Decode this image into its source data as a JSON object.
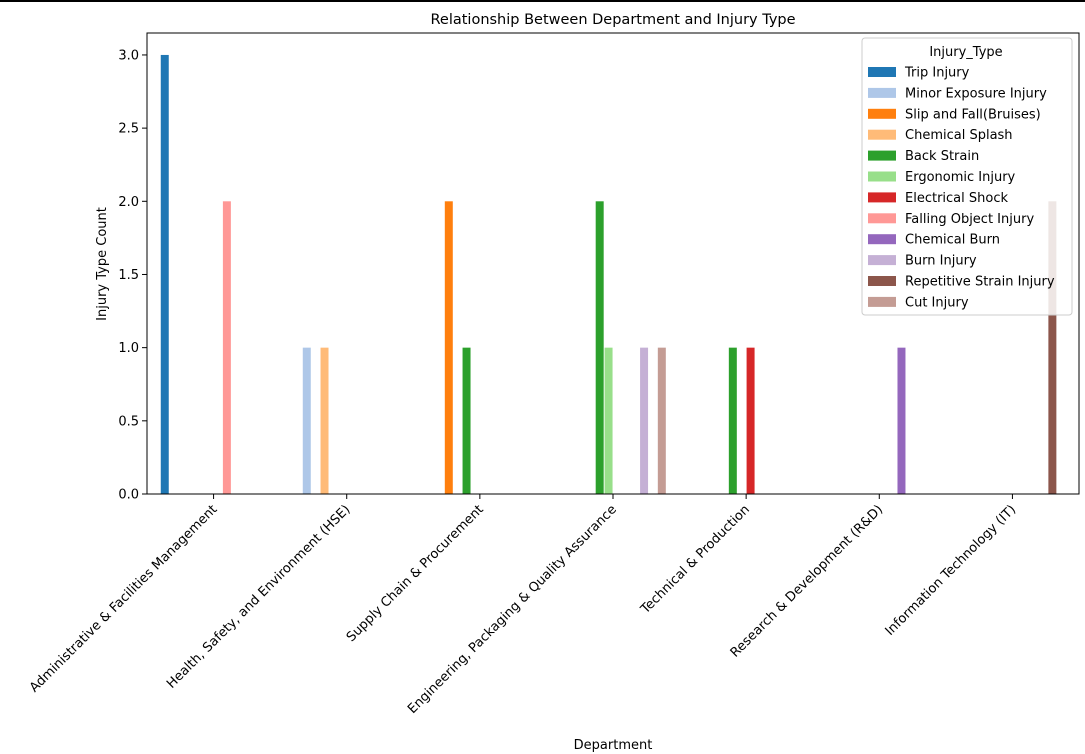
{
  "chart_data": {
    "type": "bar",
    "title": "Relationship Between Department and Injury Type",
    "xlabel": "Department",
    "ylabel": "Injury Type Count",
    "ylim": [
      0,
      3.15
    ],
    "yticks": [
      "0.0",
      "0.5",
      "1.0",
      "1.5",
      "2.0",
      "2.5",
      "3.0"
    ],
    "grid": false,
    "legend_position": "top-right",
    "legend_title": "Injury_Type",
    "categories": [
      "Administrative & Facilities Management",
      "Health, Safety, and Environment (HSE)",
      "Supply Chain & Procurement",
      "Engineering, Packaging & Quality Assurance",
      "Technical & Production",
      "Research & Development (R&D)",
      "Information Technology (IT)"
    ],
    "series": [
      {
        "name": "Trip Injury",
        "color": "#1f77b4",
        "values": [
          3,
          null,
          null,
          null,
          null,
          null,
          null
        ]
      },
      {
        "name": "Minor Exposure Injury",
        "color": "#aec7e8",
        "values": [
          null,
          1,
          null,
          null,
          null,
          null,
          null
        ]
      },
      {
        "name": "Slip and Fall(Bruises)",
        "color": "#ff7f0e",
        "values": [
          null,
          null,
          2,
          null,
          null,
          null,
          null
        ]
      },
      {
        "name": "Chemical Splash",
        "color": "#ffbb78",
        "values": [
          null,
          1,
          null,
          null,
          null,
          null,
          null
        ]
      },
      {
        "name": "Back Strain",
        "color": "#2ca02c",
        "values": [
          null,
          null,
          1,
          2,
          1,
          null,
          null
        ]
      },
      {
        "name": "Ergonomic Injury",
        "color": "#98df8a",
        "values": [
          null,
          null,
          null,
          1,
          null,
          null,
          null
        ]
      },
      {
        "name": "Electrical Shock",
        "color": "#d62728",
        "values": [
          null,
          null,
          null,
          null,
          1,
          null,
          null
        ]
      },
      {
        "name": "Falling Object Injury",
        "color": "#ff9896",
        "values": [
          2,
          null,
          null,
          null,
          null,
          null,
          null
        ]
      },
      {
        "name": "Chemical Burn",
        "color": "#9467bd",
        "values": [
          null,
          null,
          null,
          null,
          null,
          1,
          null
        ]
      },
      {
        "name": "Burn Injury",
        "color": "#c5b0d5",
        "values": [
          null,
          null,
          null,
          1,
          null,
          null,
          null
        ]
      },
      {
        "name": "Repetitive Strain Injury",
        "color": "#8c564b",
        "values": [
          null,
          null,
          null,
          null,
          null,
          null,
          2
        ]
      },
      {
        "name": "Cut Injury",
        "color": "#c49c94",
        "values": [
          null,
          null,
          null,
          1,
          null,
          null,
          null
        ]
      }
    ]
  }
}
